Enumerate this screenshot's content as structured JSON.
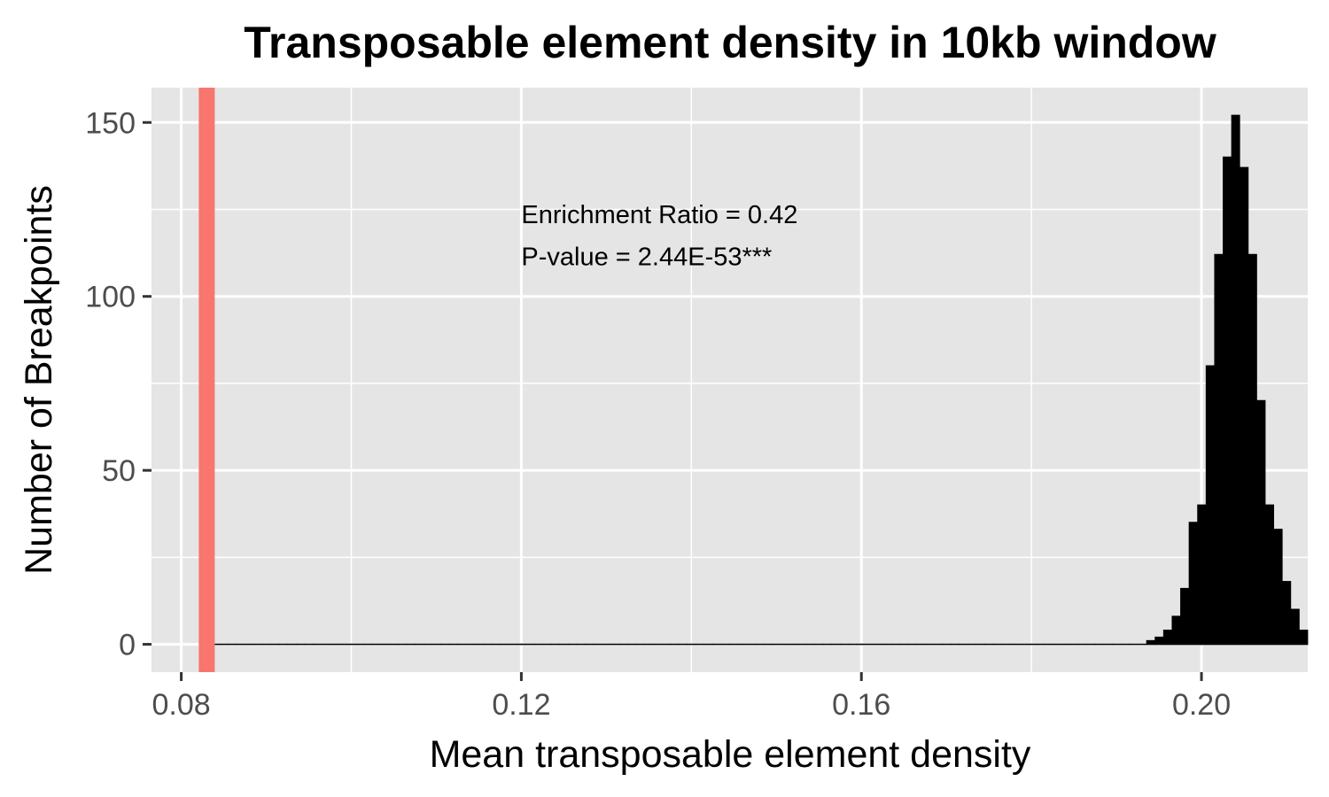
{
  "chart_data": {
    "type": "bar",
    "title": "Transposable element density in 10kb window",
    "xlabel": "Mean transposable element density",
    "ylabel": "Number of Breakpoints",
    "xlim": [
      0.0765,
      0.2125
    ],
    "ylim": [
      -8,
      160
    ],
    "x_ticks": [
      0.08,
      0.12,
      0.16,
      0.2
    ],
    "x_tick_labels": [
      "0.08",
      "0.12",
      "0.16",
      "0.20"
    ],
    "x_minor_ticks": [
      0.1,
      0.14,
      0.18
    ],
    "y_ticks": [
      0,
      50,
      100,
      150
    ],
    "y_tick_labels": [
      "0",
      "50",
      "100",
      "150"
    ],
    "y_minor_ticks": [
      25,
      75,
      125
    ],
    "grid": true,
    "legend": "none",
    "bin_width": 0.001,
    "bins": {
      "x_start": 0.0835,
      "values": [
        0,
        0,
        0,
        0,
        0,
        0,
        0,
        0,
        0,
        0,
        0,
        0,
        0,
        0,
        0,
        0,
        0,
        0,
        0,
        0,
        0,
        0,
        0,
        0,
        0,
        0,
        0,
        0,
        0,
        0,
        0,
        0,
        0,
        0,
        0,
        0,
        0,
        0,
        0,
        0,
        0,
        0,
        0,
        0,
        0,
        0,
        0,
        0,
        0,
        0,
        0,
        0,
        0,
        0,
        0,
        0,
        0,
        0,
        0,
        0,
        0,
        0,
        0,
        0,
        0,
        0,
        0,
        0,
        0,
        0,
        0,
        0,
        0,
        0,
        0,
        0,
        0,
        0,
        0,
        0,
        0,
        0,
        0,
        0,
        0,
        0,
        0,
        0,
        0,
        0,
        0,
        0,
        0,
        0,
        0,
        0,
        0,
        0,
        0,
        0,
        0,
        0,
        0,
        0,
        0,
        0,
        0,
        0,
        0,
        0,
        1,
        2,
        4,
        8,
        16,
        35,
        40,
        80,
        112,
        140,
        152,
        137,
        112,
        70,
        40,
        33,
        18,
        10,
        4
      ]
    },
    "observed_line": {
      "x": 0.083,
      "color": "#F8766D"
    },
    "annotations": [
      {
        "text": "Enrichment Ratio = 0.42",
        "x": 0.12,
        "y": 121
      },
      {
        "text": "P-value = 2.44E-53***",
        "x": 0.12,
        "y": 109
      }
    ],
    "colors": {
      "panel_background": "#E5E5E5",
      "grid": "#FFFFFF",
      "bars": "#000000",
      "ticks": "#333333"
    }
  }
}
